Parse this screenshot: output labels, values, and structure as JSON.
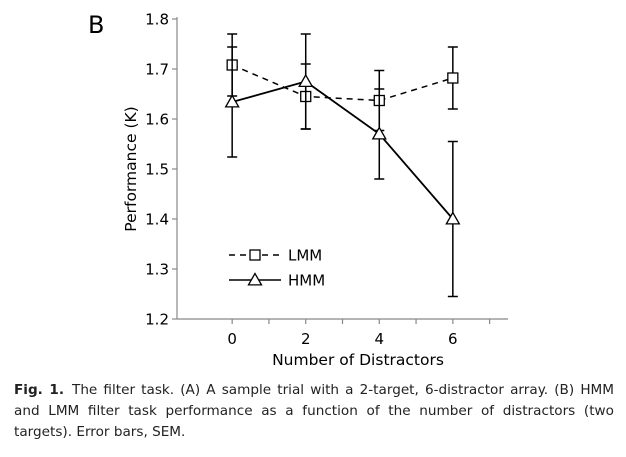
{
  "panel_label": "B",
  "caption": {
    "label": "Fig. 1.",
    "text": "The filter task. (A) A sample trial with a 2-target, 6-distractor array. (B) HMM and LMM filter task performance as a function of the number of distractors (two targets). Error bars, SEM."
  },
  "chart_data": {
    "type": "line",
    "xlabel": "Number of Distractors",
    "ylabel": "Performance (K)",
    "x": [
      0,
      2,
      4,
      6
    ],
    "xlim": [
      -1.5,
      7.5
    ],
    "ylim": [
      1.2,
      1.8
    ],
    "yticks": [
      1.2,
      1.3,
      1.4,
      1.5,
      1.6,
      1.7,
      1.8
    ],
    "ytick_labels": [
      "1.2",
      "1.3",
      "1.4",
      "1.5",
      "1.6",
      "1.7",
      "1.8"
    ],
    "xticks": [
      0,
      2,
      4,
      6
    ],
    "xtick_labels": [
      "0",
      "2",
      "4",
      "6"
    ],
    "grid": false,
    "legend_position": "bottom-left",
    "series": [
      {
        "name": "LMM",
        "line_style": "dashed",
        "marker": "square",
        "values": [
          1.708,
          1.645,
          1.637,
          1.682
        ],
        "error": [
          0.062,
          0.065,
          0.06,
          0.062
        ]
      },
      {
        "name": "HMM",
        "line_style": "solid",
        "marker": "triangle",
        "values": [
          1.634,
          1.675,
          1.57,
          1.4
        ],
        "error": [
          0.11,
          0.095,
          0.09,
          0.155
        ]
      }
    ]
  }
}
